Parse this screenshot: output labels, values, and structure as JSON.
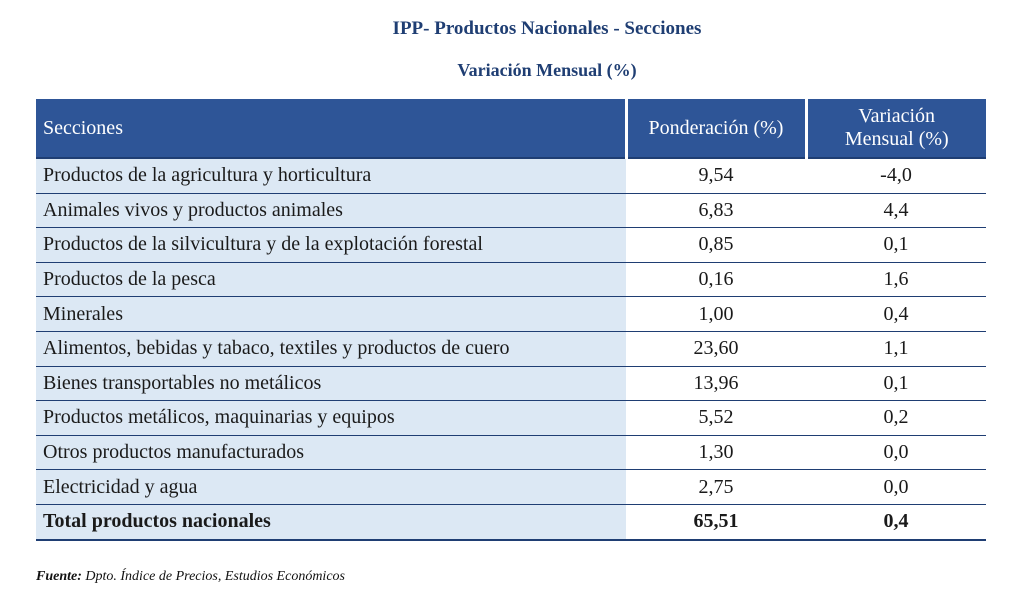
{
  "title": "IPP- Productos Nacionales - Secciones",
  "subtitle": "Variación Mensual (%)",
  "table": {
    "headers": {
      "col1": "Secciones",
      "col2": "Ponderación (%)",
      "col3_line1": "Variación",
      "col3_line2": "Mensual (%)"
    },
    "rows": [
      {
        "name": "Productos de la agricultura y horticultura",
        "ponderacion": "9,54",
        "variacion": "-4,0"
      },
      {
        "name": "Animales vivos y productos animales",
        "ponderacion": "6,83",
        "variacion": "4,4"
      },
      {
        "name": "Productos de la silvicultura y de la explotación forestal",
        "ponderacion": "0,85",
        "variacion": "0,1"
      },
      {
        "name": "Productos de la pesca",
        "ponderacion": "0,16",
        "variacion": "1,6"
      },
      {
        "name": "Minerales",
        "ponderacion": "1,00",
        "variacion": "0,4"
      },
      {
        "name": "Alimentos, bebidas y tabaco, textiles y productos de cuero",
        "ponderacion": "23,60",
        "variacion": "1,1"
      },
      {
        "name": "Bienes transportables no metálicos",
        "ponderacion": "13,96",
        "variacion": "0,1"
      },
      {
        "name": "Productos metálicos, maquinarias y equipos",
        "ponderacion": "5,52",
        "variacion": "0,2"
      },
      {
        "name": "Otros productos manufacturados",
        "ponderacion": "1,30",
        "variacion": "0,0"
      },
      {
        "name": "Electricidad y agua",
        "ponderacion": "2,75",
        "variacion": "0,0"
      }
    ],
    "total": {
      "name": "Total productos nacionales",
      "ponderacion": "65,51",
      "variacion": "0,4"
    }
  },
  "source": {
    "label": "Fuente:",
    "text": " Dpto. Índice de Precios, Estudios Económicos"
  },
  "colors": {
    "header_bg": "#2e5597",
    "title_text": "#1f3e73",
    "name_cell_bg": "#dce8f4"
  }
}
